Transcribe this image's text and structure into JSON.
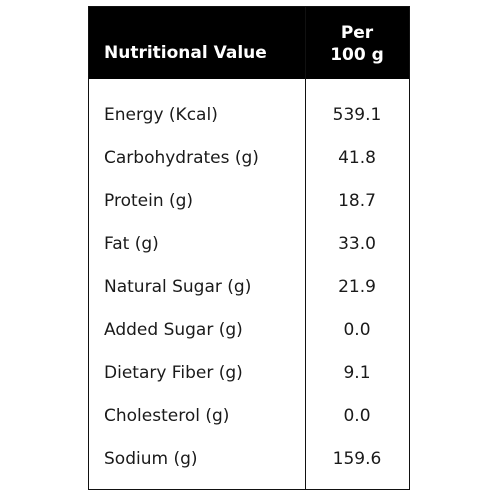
{
  "table": {
    "header": {
      "label": "Nutritional Value",
      "per_line1": "Per",
      "per_line2": "100 g"
    },
    "rows": [
      {
        "label": "Energy (Kcal)",
        "value": "539.1"
      },
      {
        "label": "Carbohydrates (g)",
        "value": "41.8"
      },
      {
        "label": "Protein (g)",
        "value": "18.7"
      },
      {
        "label": "Fat (g)",
        "value": "33.0"
      },
      {
        "label": "Natural Sugar (g)",
        "value": "21.9"
      },
      {
        "label": "Added Sugar (g)",
        "value": "0.0"
      },
      {
        "label": "Dietary Fiber (g)",
        "value": "9.1"
      },
      {
        "label": "Cholesterol (g)",
        "value": "0.0"
      },
      {
        "label": "Sodium (g)",
        "value": "159.6"
      }
    ]
  }
}
